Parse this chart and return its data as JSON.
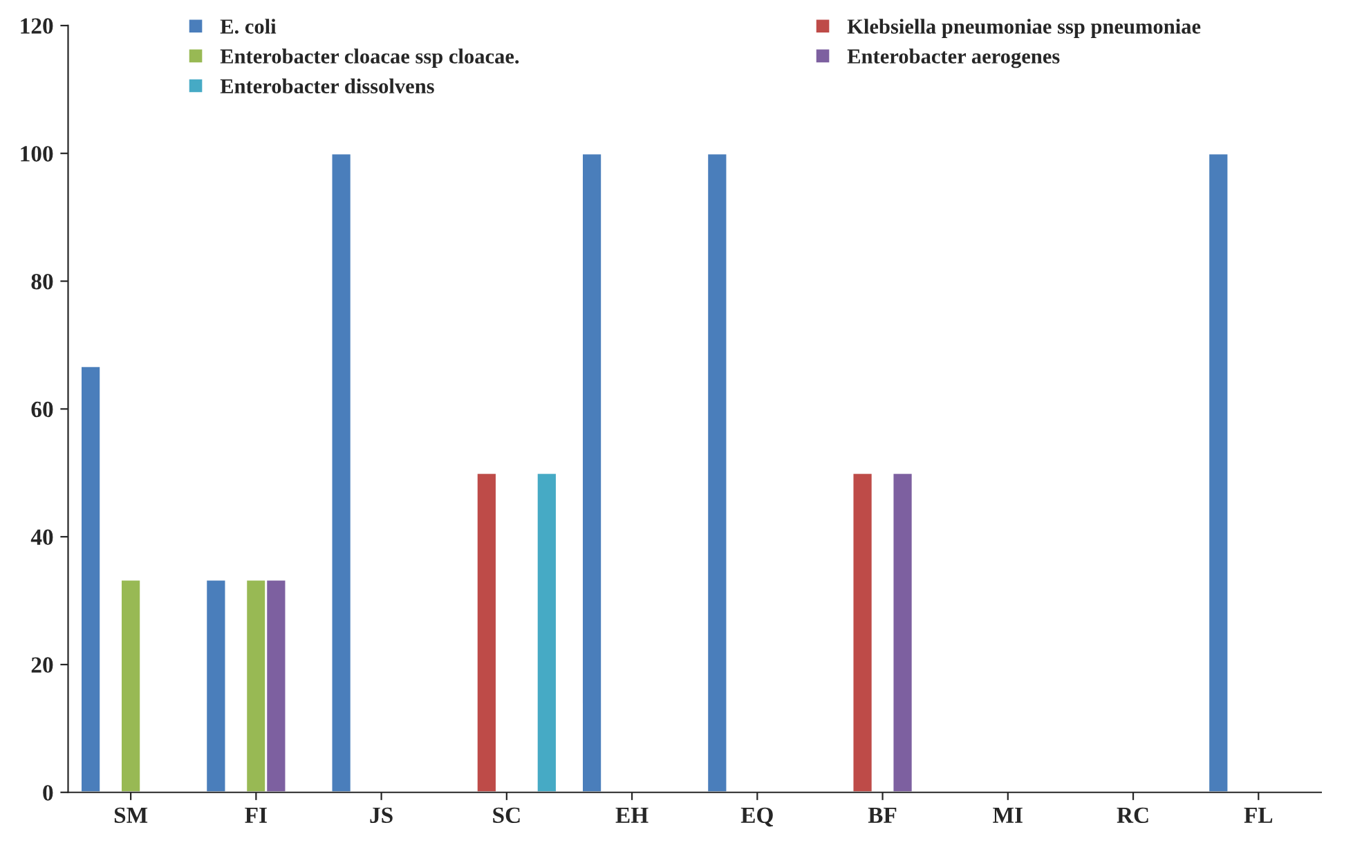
{
  "chart_data": {
    "type": "bar",
    "categories": [
      "SM",
      "FI",
      "JS",
      "SC",
      "EH",
      "EQ",
      "BF",
      "MI",
      "RC",
      "FL"
    ],
    "series": [
      {
        "name": "E. coli",
        "color": "#4a7ebb",
        "values": [
          66.7,
          33.3,
          100,
          null,
          100,
          100,
          null,
          null,
          null,
          100
        ]
      },
      {
        "name": "Klebsiella pneumoniae ssp pneumoniae",
        "color": "#be4b48",
        "values": [
          null,
          null,
          null,
          50,
          null,
          null,
          50,
          null,
          null,
          null
        ]
      },
      {
        "name": "Enterobacter cloacae ssp cloacae.",
        "color": "#98b954",
        "values": [
          33.3,
          33.3,
          null,
          null,
          null,
          null,
          null,
          null,
          null,
          null
        ]
      },
      {
        "name": "Enterobacter aerogenes",
        "color": "#7d60a0",
        "values": [
          null,
          33.3,
          null,
          null,
          null,
          null,
          50,
          null,
          null,
          null
        ]
      },
      {
        "name": "Enterobacter dissolvens",
        "color": "#46aac5",
        "values": [
          null,
          null,
          null,
          50,
          null,
          null,
          null,
          null,
          null,
          null
        ]
      }
    ],
    "ylim": [
      0,
      120
    ],
    "yticks": [
      0,
      20,
      40,
      60,
      80,
      100,
      120
    ],
    "grid": false,
    "legend": "top"
  }
}
